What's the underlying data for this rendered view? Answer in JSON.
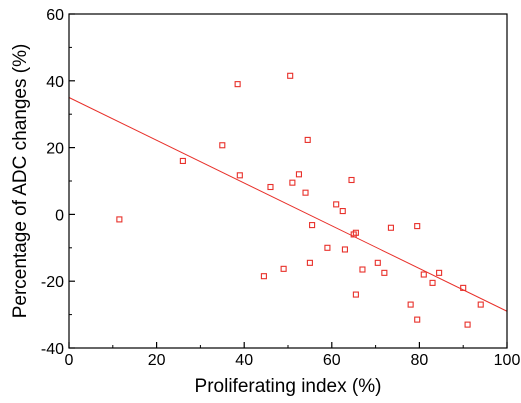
{
  "chart_data": {
    "type": "scatter",
    "title": "",
    "xlabel": "Proliferating index (%)",
    "ylabel": "Percentage of ADC changes (%)",
    "xlim": [
      0,
      100
    ],
    "ylim": [
      -40,
      60
    ],
    "x_ticks": [
      0,
      20,
      40,
      60,
      80,
      100
    ],
    "y_ticks": [
      -40,
      -20,
      0,
      20,
      40,
      60
    ],
    "grid": false,
    "legend": "none",
    "series": [
      {
        "marker": "open-square",
        "color": "#e8302a",
        "points": [
          {
            "x": 11.5,
            "y": -1.5
          },
          {
            "x": 26.0,
            "y": 16.0
          },
          {
            "x": 35.0,
            "y": 20.7
          },
          {
            "x": 38.5,
            "y": 39.0
          },
          {
            "x": 39.0,
            "y": 11.7
          },
          {
            "x": 46.0,
            "y": 8.2
          },
          {
            "x": 44.5,
            "y": -18.5
          },
          {
            "x": 49.0,
            "y": -16.3
          },
          {
            "x": 50.5,
            "y": 41.5
          },
          {
            "x": 51.0,
            "y": 9.5
          },
          {
            "x": 52.5,
            "y": 12.0
          },
          {
            "x": 54.0,
            "y": 6.5
          },
          {
            "x": 54.5,
            "y": 22.3
          },
          {
            "x": 55.5,
            "y": -3.2
          },
          {
            "x": 55.0,
            "y": -14.5
          },
          {
            "x": 59.0,
            "y": -10.0
          },
          {
            "x": 61.0,
            "y": 3.0
          },
          {
            "x": 62.5,
            "y": 1.0
          },
          {
            "x": 63.0,
            "y": -10.5
          },
          {
            "x": 64.5,
            "y": 10.3
          },
          {
            "x": 65.0,
            "y": -6.0
          },
          {
            "x": 65.5,
            "y": -5.5
          },
          {
            "x": 65.5,
            "y": -24.0
          },
          {
            "x": 67.0,
            "y": -16.5
          },
          {
            "x": 70.5,
            "y": -14.5
          },
          {
            "x": 72.0,
            "y": -17.5
          },
          {
            "x": 73.5,
            "y": -4.0
          },
          {
            "x": 78.0,
            "y": -27.0
          },
          {
            "x": 79.5,
            "y": -3.5
          },
          {
            "x": 79.5,
            "y": -31.5
          },
          {
            "x": 81.0,
            "y": -18.0
          },
          {
            "x": 83.0,
            "y": -20.5
          },
          {
            "x": 84.5,
            "y": -17.5
          },
          {
            "x": 90.0,
            "y": -22.0
          },
          {
            "x": 91.0,
            "y": -33.0
          },
          {
            "x": 94.0,
            "y": -27.0
          }
        ]
      }
    ],
    "regression_line": {
      "color": "#e8302a",
      "x": [
        0,
        100
      ],
      "y": [
        35.0,
        -29.0
      ]
    }
  }
}
